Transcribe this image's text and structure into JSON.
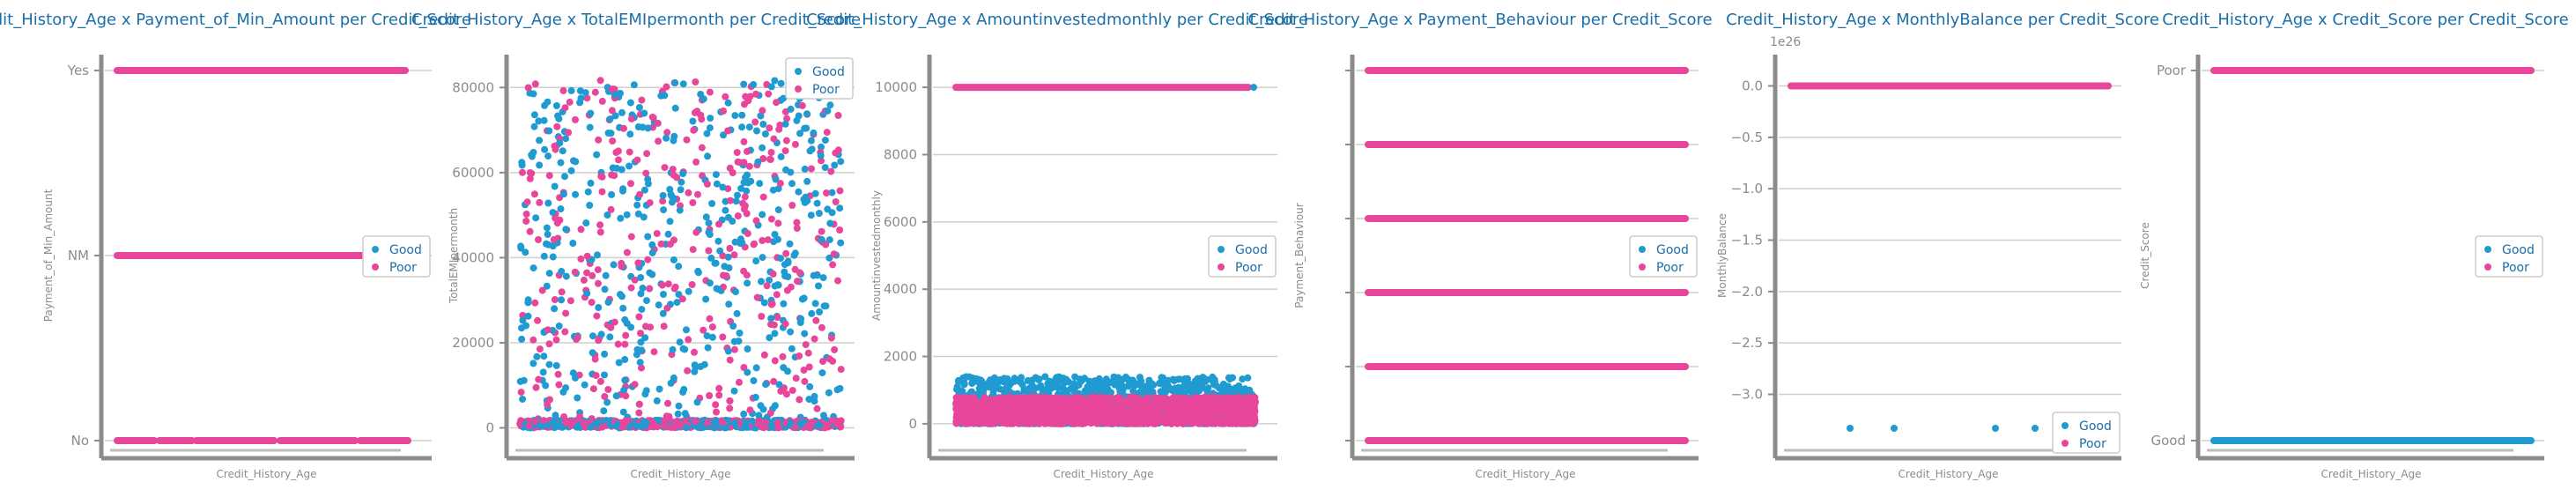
{
  "colors": {
    "good": "#1f9bd1",
    "poor": "#e8469a",
    "axis": "#8c8c8c",
    "grid": "#cfcfcf",
    "title": "#1a6fa8",
    "label": "#8c8c8c"
  },
  "legend": {
    "good": "Good",
    "poor": "Poor"
  },
  "chart_data": [
    {
      "type": "scatter",
      "title": "Credit_History_Age x Payment_of_Min_Amount per Credit_Score",
      "xlabel": "Credit_History_Age",
      "ylabel": "Payment_of_Min_Amount",
      "y_categories": [
        "No",
        "NM",
        "Yes"
      ],
      "series": [
        {
          "name": "Good",
          "y": [
            "No",
            "NM",
            "Yes"
          ]
        },
        {
          "name": "Poor",
          "y": [
            "No",
            "NM",
            "Yes"
          ]
        }
      ],
      "legend_position": "center-right",
      "grid": "horizontal"
    },
    {
      "type": "scatter",
      "title": "Credit_History_Age x TotalEMIpermonth per Credit_Score",
      "xlabel": "Credit_History_Age",
      "ylabel": "TotalEMIpermonth",
      "ylim": [
        -3000,
        84000
      ],
      "yticks": [
        "0",
        "20000",
        "40000",
        "60000",
        "80000"
      ],
      "series": [
        {
          "name": "Good",
          "y_range": [
            0,
            82000
          ],
          "dense_band": [
            0,
            2000
          ]
        },
        {
          "name": "Poor",
          "y_range": [
            0,
            82000
          ],
          "dense_band": [
            0,
            2000
          ]
        }
      ],
      "legend_position": "top-right",
      "grid": "horizontal"
    },
    {
      "type": "scatter",
      "title": "Credit_History_Age x Amountinvestedmonthly per Credit_Score",
      "xlabel": "Credit_History_Age",
      "ylabel": "Amountinvestedmonthly",
      "ylim": [
        -500,
        10500
      ],
      "yticks": [
        "0",
        "2000",
        "4000",
        "6000",
        "8000",
        "10000"
      ],
      "series": [
        {
          "name": "Good",
          "y_range": [
            0,
            1500
          ],
          "outlier_value": 10000
        },
        {
          "name": "Poor",
          "y_range": [
            0,
            800
          ],
          "outlier_value": 10000
        }
      ],
      "legend_position": "center-right",
      "grid": "horizontal"
    },
    {
      "type": "scatter",
      "title": "Credit_History_Age x Payment_Behaviour per Credit_Score",
      "xlabel": "Credit_History_Age",
      "ylabel": "Payment_Behaviour",
      "y_levels": 6,
      "yticks": [],
      "series": [
        {
          "name": "Good",
          "levels": [
            0,
            1,
            2,
            3,
            4,
            5
          ]
        },
        {
          "name": "Poor",
          "levels": [
            0,
            1,
            2,
            3,
            4,
            5
          ]
        }
      ],
      "legend_position": "center-right",
      "grid": "horizontal"
    },
    {
      "type": "scatter",
      "title": "Credit_History_Age x MonthlyBalance per Credit_Score",
      "xlabel": "Credit_History_Age",
      "ylabel": "MonthlyBalance",
      "offset_text": "1e26",
      "ylim": [
        -3.45,
        0.15
      ],
      "yticks": [
        "0.0",
        "−0.5",
        "−1.0",
        "−1.5",
        "−2.0",
        "−2.5",
        "−3.0"
      ],
      "series": [
        {
          "name": "Good",
          "y_main": 0.0,
          "outliers_y": -3.33
        },
        {
          "name": "Poor",
          "y_main": 0.0
        }
      ],
      "legend_position": "bottom-right",
      "grid": "horizontal"
    },
    {
      "type": "scatter",
      "title": "Credit_History_Age x Credit_Score per Credit_Score",
      "xlabel": "Credit_History_Age",
      "ylabel": "Credit_Score",
      "y_categories": [
        "Good",
        "Poor"
      ],
      "series": [
        {
          "name": "Good",
          "y": [
            "Good"
          ]
        },
        {
          "name": "Poor",
          "y": [
            "Poor"
          ]
        }
      ],
      "legend_position": "center-right",
      "grid": "horizontal"
    }
  ]
}
